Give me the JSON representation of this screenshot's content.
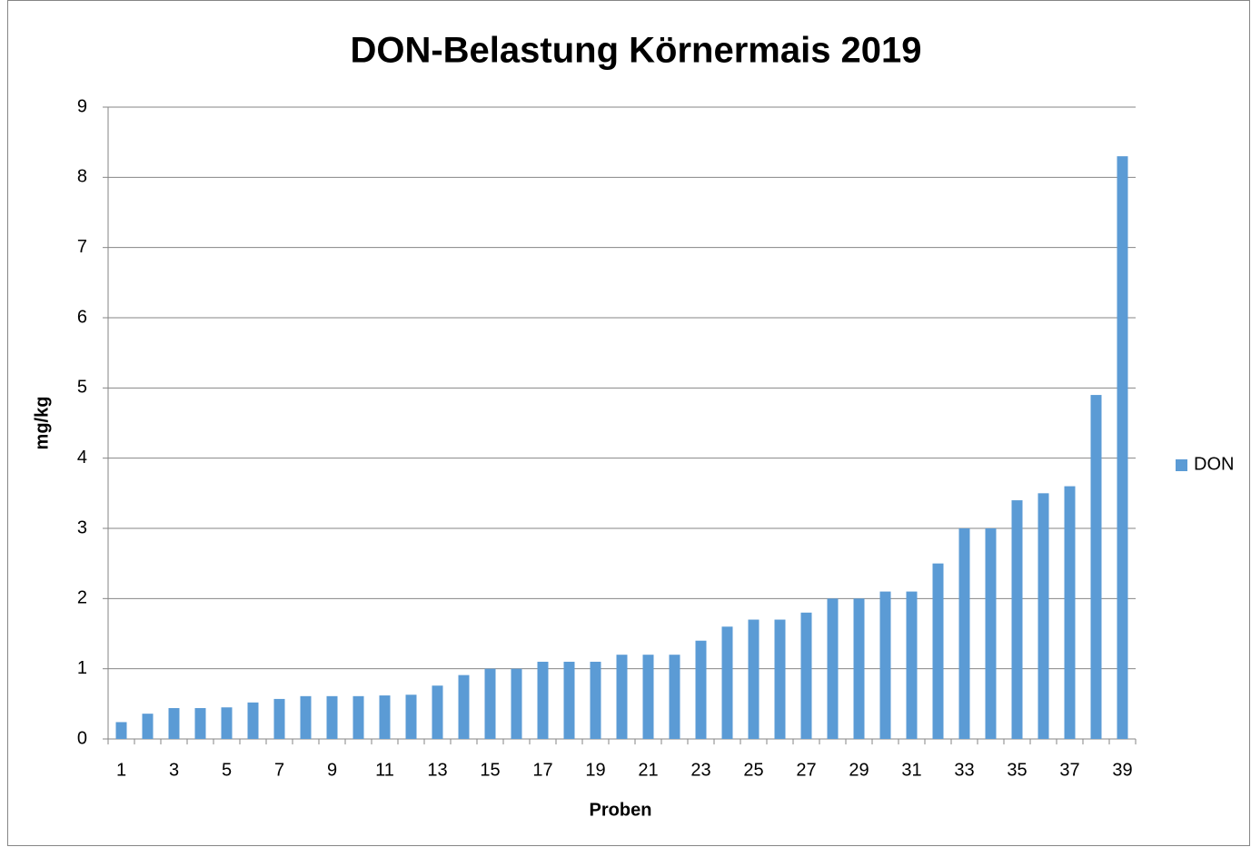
{
  "chart_data": {
    "type": "bar",
    "title": "DON-Belastung Körnermais 2019",
    "x_label": "Proben",
    "y_label": "mg/kg",
    "categories": [
      "1",
      null,
      "3",
      null,
      "5",
      null,
      "7",
      null,
      "9",
      null,
      "11",
      null,
      "13",
      null,
      "15",
      null,
      "17",
      null,
      "19",
      null,
      "21",
      null,
      "23",
      null,
      "25",
      null,
      "27",
      null,
      "29",
      null,
      "31",
      null,
      "33",
      null,
      "35",
      null,
      "37",
      null,
      "39"
    ],
    "series": [
      {
        "name": "DON",
        "color": "#5b9bd5",
        "values": [
          0.24,
          0.36,
          0.44,
          0.44,
          0.45,
          0.52,
          0.57,
          0.61,
          0.61,
          0.61,
          0.62,
          0.63,
          0.76,
          0.91,
          1.0,
          1.0,
          1.1,
          1.1,
          1.1,
          1.2,
          1.2,
          1.2,
          1.4,
          1.6,
          1.7,
          1.7,
          1.8,
          2.0,
          2.0,
          2.1,
          2.1,
          2.5,
          3.0,
          3.0,
          3.4,
          3.5,
          3.6,
          4.9,
          8.3
        ]
      }
    ],
    "ylim": [
      0,
      9
    ],
    "yticks": [
      0,
      1,
      2,
      3,
      4,
      5,
      6,
      7,
      8,
      9
    ],
    "grid": true,
    "legend": "right"
  }
}
